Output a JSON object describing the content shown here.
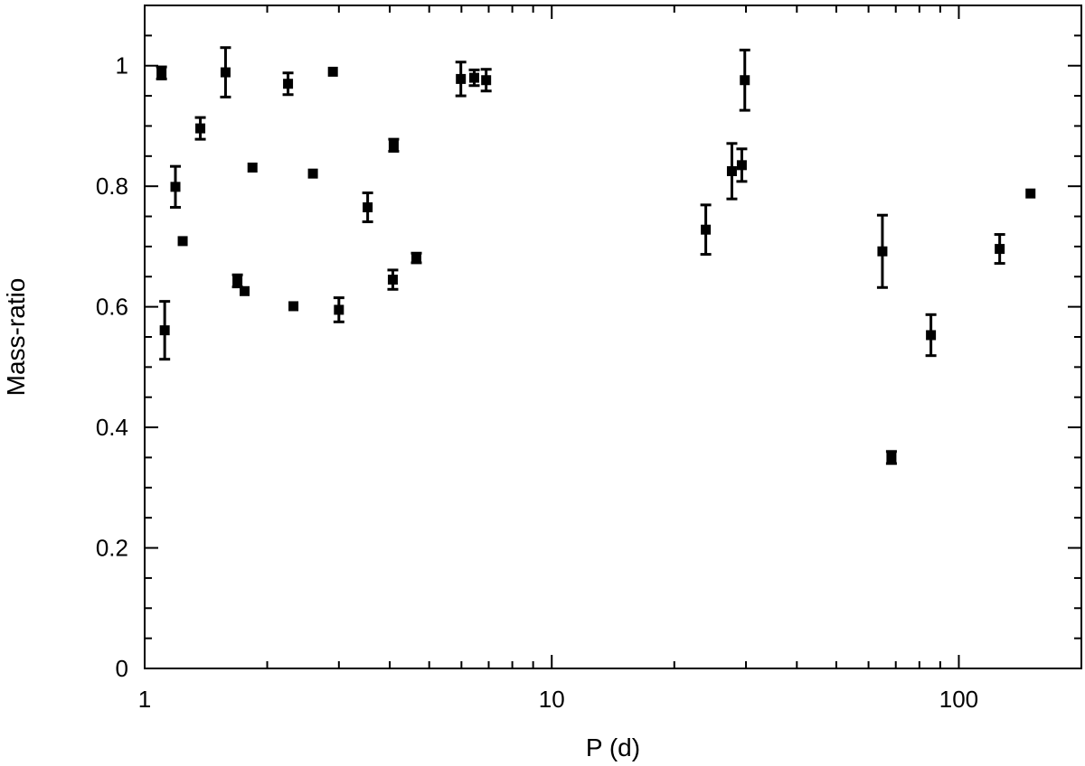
{
  "chart_data": {
    "type": "scatter",
    "xlabel": "P (d)",
    "ylabel": "Mass-ratio",
    "xscale": "log",
    "xlim": [
      1,
      200
    ],
    "ylim": [
      0,
      1.1
    ],
    "xticks": [
      {
        "value": 1,
        "label": "1"
      },
      {
        "value": 10,
        "label": "10"
      },
      {
        "value": 100,
        "label": "100"
      }
    ],
    "yticks": [
      {
        "value": 0,
        "label": "0"
      },
      {
        "value": 0.2,
        "label": "0.2"
      },
      {
        "value": 0.4,
        "label": "0.4"
      },
      {
        "value": 0.6,
        "label": "0.6"
      },
      {
        "value": 0.8,
        "label": "0.8"
      },
      {
        "value": 1,
        "label": "1"
      }
    ],
    "grid": false,
    "marker": "filled-square",
    "error_bars": "vertical",
    "color": "#000000",
    "points": [
      {
        "x": 1.1,
        "y": 0.988,
        "err": 0.01
      },
      {
        "x": 1.12,
        "y": 0.561,
        "err": 0.048
      },
      {
        "x": 1.19,
        "y": 0.799,
        "err": 0.034
      },
      {
        "x": 1.24,
        "y": 0.709,
        "err": 0.004
      },
      {
        "x": 1.37,
        "y": 0.896,
        "err": 0.018
      },
      {
        "x": 1.58,
        "y": 0.989,
        "err": 0.041
      },
      {
        "x": 1.69,
        "y": 0.643,
        "err": 0.01
      },
      {
        "x": 1.76,
        "y": 0.626,
        "err": 0.005
      },
      {
        "x": 1.84,
        "y": 0.831,
        "err": 0.003
      },
      {
        "x": 2.25,
        "y": 0.97,
        "err": 0.018
      },
      {
        "x": 2.32,
        "y": 0.601,
        "err": 0.007
      },
      {
        "x": 2.59,
        "y": 0.821,
        "err": 0.003
      },
      {
        "x": 2.9,
        "y": 0.99,
        "err": 0.004
      },
      {
        "x": 3.0,
        "y": 0.595,
        "err": 0.02
      },
      {
        "x": 3.53,
        "y": 0.765,
        "err": 0.024
      },
      {
        "x": 4.07,
        "y": 0.645,
        "err": 0.016
      },
      {
        "x": 4.09,
        "y": 0.868,
        "err": 0.01
      },
      {
        "x": 4.65,
        "y": 0.681,
        "err": 0.008
      },
      {
        "x": 5.98,
        "y": 0.978,
        "err": 0.028
      },
      {
        "x": 6.45,
        "y": 0.98,
        "err": 0.013
      },
      {
        "x": 6.9,
        "y": 0.976,
        "err": 0.018
      },
      {
        "x": 23.9,
        "y": 0.728,
        "err": 0.041
      },
      {
        "x": 27.7,
        "y": 0.825,
        "err": 0.046
      },
      {
        "x": 29.3,
        "y": 0.835,
        "err": 0.027
      },
      {
        "x": 29.8,
        "y": 0.976,
        "err": 0.05
      },
      {
        "x": 64.9,
        "y": 0.692,
        "err": 0.06
      },
      {
        "x": 68.3,
        "y": 0.35,
        "err": 0.01
      },
      {
        "x": 85.4,
        "y": 0.553,
        "err": 0.034
      },
      {
        "x": 126.0,
        "y": 0.696,
        "err": 0.024
      },
      {
        "x": 150.0,
        "y": 0.788,
        "err": 0.006
      }
    ]
  }
}
